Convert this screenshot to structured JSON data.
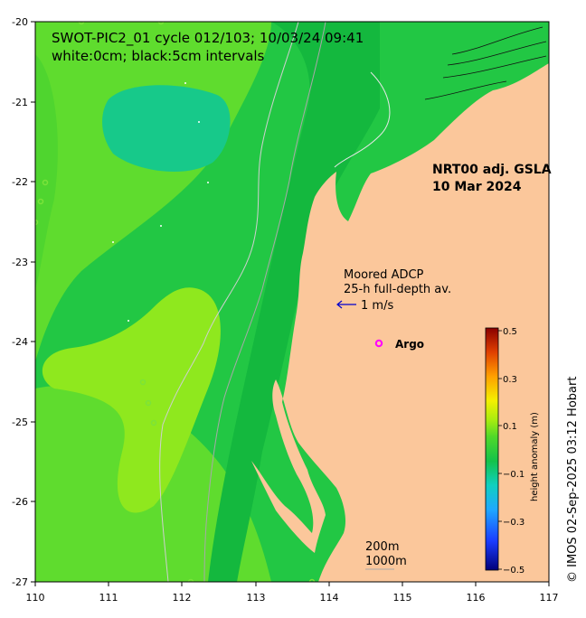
{
  "map": {
    "title_line1": "SWOT-PIC2_01 cycle 012/103; 10/03/24 09:41",
    "title_line2": "white:0cm; black:5cm intervals",
    "product_line1": "NRT00 adj. GSLA",
    "product_line2": "10 Mar 2024",
    "adcp_line1": "Moored ADCP",
    "adcp_line2": "25-h full-depth av.",
    "adcp_scale": "1 m/s",
    "argo_label": "Argo",
    "isobath_200": "200m",
    "isobath_1000": "1000m",
    "credit": "© IMOS 02-Sep-2025 03:12 Hobart",
    "lon_ticks": [
      "110",
      "111",
      "112",
      "113",
      "114",
      "115",
      "116",
      "117"
    ],
    "lat_ticks": [
      "-20",
      "-21",
      "-22",
      "-23",
      "-24",
      "-25",
      "-26",
      "-27"
    ],
    "extent": {
      "lon": [
        110,
        117
      ],
      "lat": [
        -27,
        -20
      ]
    }
  },
  "colorbar": {
    "label": "height anomaly (m)",
    "ticks": [
      "0.5",
      "0.3",
      "0.1",
      "−0.1",
      "−0.3",
      "−0.5"
    ],
    "range": [
      -0.5,
      0.5
    ]
  },
  "colors": {
    "land": "#fbc79b",
    "ocean_base": "#22c744",
    "ocean_light": "#5fdc2e",
    "ocean_yellowgreen": "#8fe81e",
    "ocean_teal": "#17c98a",
    "argo_marker": "#ff00ff",
    "adcp_arrow": "#0000cc"
  }
}
